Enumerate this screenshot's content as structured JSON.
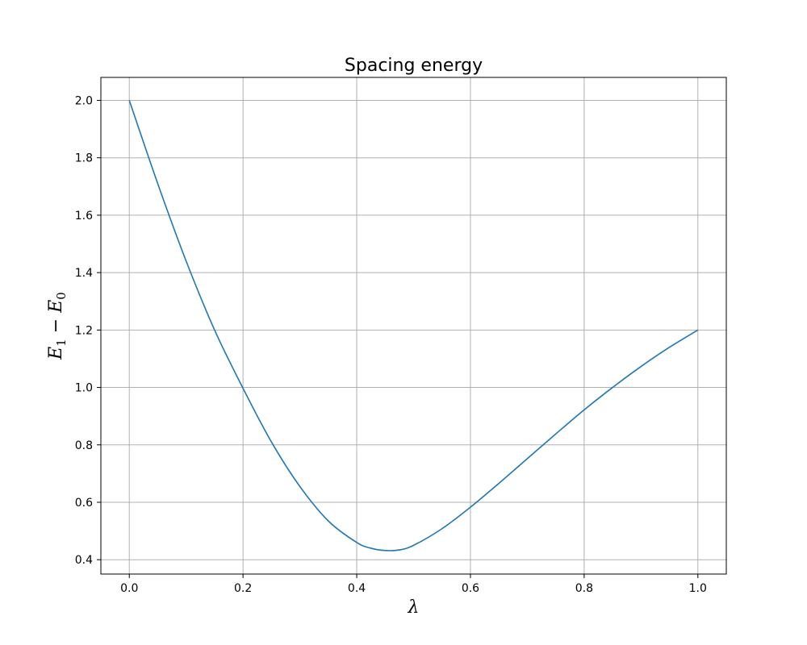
{
  "chart_data": {
    "type": "line",
    "title": "Spacing energy",
    "xlabel": "λ",
    "ylabel": {
      "parts": [
        {
          "text": "E",
          "role": "var"
        },
        {
          "text": "1",
          "role": "sub"
        },
        {
          "text": " − ",
          "role": "op"
        },
        {
          "text": "E",
          "role": "var"
        },
        {
          "text": "0",
          "role": "sub"
        }
      ]
    },
    "xlim": [
      -0.05,
      1.05
    ],
    "ylim": [
      0.35,
      2.08
    ],
    "x_ticks": [
      0.0,
      0.2,
      0.4,
      0.6,
      0.8,
      1.0
    ],
    "x_tick_labels": [
      "0.0",
      "0.2",
      "0.4",
      "0.6",
      "0.8",
      "1.0"
    ],
    "y_ticks": [
      0.4,
      0.6,
      0.8,
      1.0,
      1.2,
      1.4,
      1.6,
      1.8,
      2.0
    ],
    "y_tick_labels": [
      "0.4",
      "0.6",
      "0.8",
      "1.0",
      "1.2",
      "1.4",
      "1.6",
      "1.8",
      "2.0"
    ],
    "grid": true,
    "legend": "none",
    "series": [
      {
        "color": "#1f77b4",
        "x": [
          0.0,
          0.05,
          0.1,
          0.15,
          0.2,
          0.25,
          0.3,
          0.35,
          0.4,
          0.425,
          0.45,
          0.475,
          0.5,
          0.55,
          0.6,
          0.65,
          0.7,
          0.75,
          0.8,
          0.85,
          0.9,
          0.95,
          1.0
        ],
        "y": [
          2.0,
          1.71,
          1.44,
          1.2,
          0.997,
          0.81,
          0.655,
          0.535,
          0.46,
          0.44,
          0.432,
          0.434,
          0.45,
          0.508,
          0.583,
          0.666,
          0.752,
          0.838,
          0.922,
          1.0,
          1.073,
          1.14,
          1.2
        ]
      }
    ]
  }
}
